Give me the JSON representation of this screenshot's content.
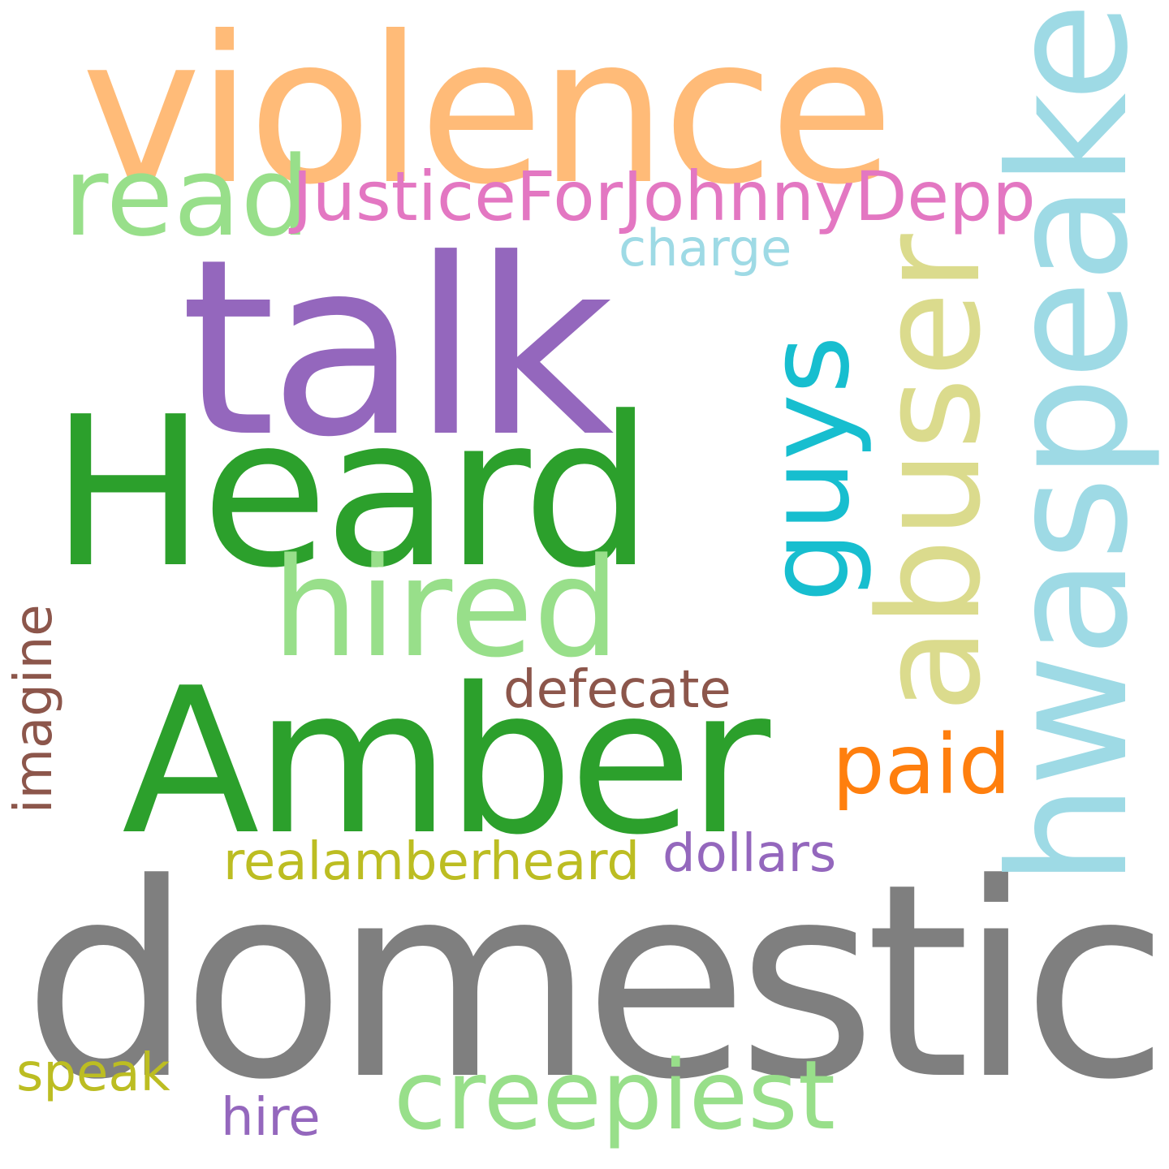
{
  "words": [
    {
      "text": "violence",
      "color": "#ffbb78"
    },
    {
      "text": "read",
      "color": "#98df8a"
    },
    {
      "text": "JusticeForJohnnyDepp",
      "color": "#e377c2"
    },
    {
      "text": "charge",
      "color": "#9edae5"
    },
    {
      "text": "talk",
      "color": "#9467bd"
    },
    {
      "text": "Heard",
      "color": "#2ca02c"
    },
    {
      "text": "hired",
      "color": "#98df8a"
    },
    {
      "text": "defecate",
      "color": "#8c564b"
    },
    {
      "text": "Amber",
      "color": "#2ca02c"
    },
    {
      "text": "paid",
      "color": "#ff7f0e"
    },
    {
      "text": "realamberheard",
      "color": "#bcbd22"
    },
    {
      "text": "dollars",
      "color": "#9467bd"
    },
    {
      "text": "domestic",
      "color": "#7f7f7f"
    },
    {
      "text": "creepiest",
      "color": "#98df8a"
    },
    {
      "text": "speak",
      "color": "#bcbd22"
    },
    {
      "text": "hire",
      "color": "#9467bd"
    },
    {
      "text": "imagine",
      "color": "#8c564b"
    },
    {
      "text": "guys",
      "color": "#17becf"
    },
    {
      "text": "abuser",
      "color": "#dbdb8d"
    },
    {
      "text": "hwaspeakers",
      "color": "#9edae5"
    }
  ]
}
